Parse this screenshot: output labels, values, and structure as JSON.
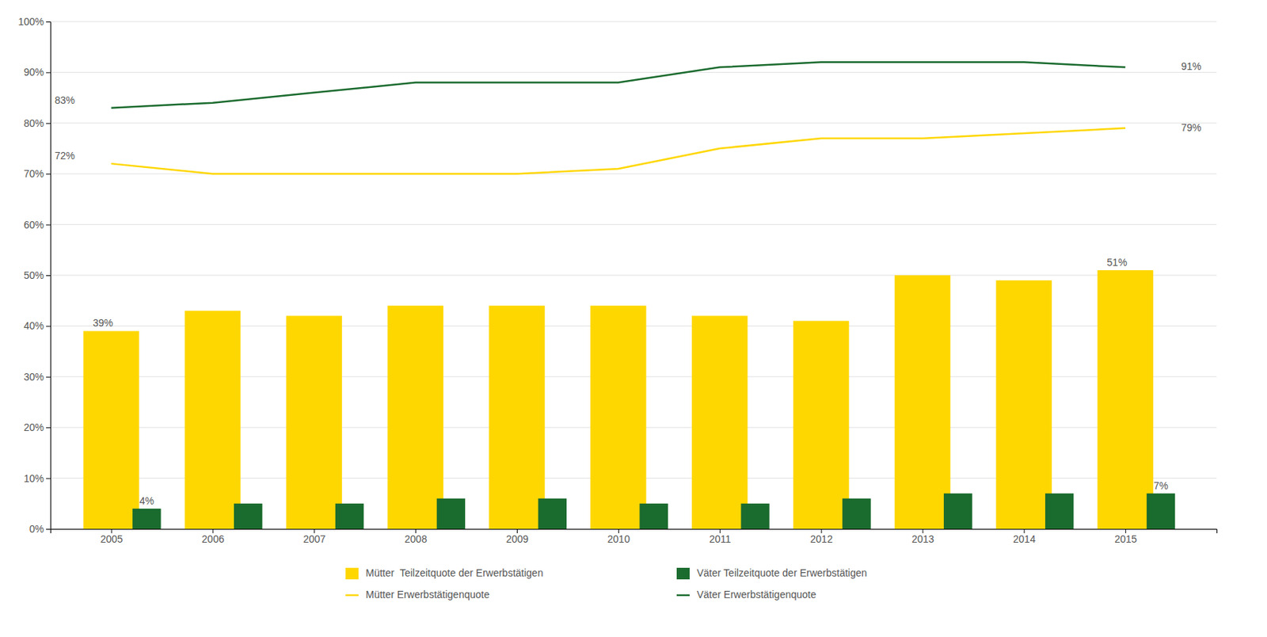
{
  "chart_data": {
    "type": "bar",
    "x": [
      2005,
      2006,
      2007,
      2008,
      2009,
      2010,
      2011,
      2012,
      2013,
      2014,
      2015
    ],
    "xlim": [
      2004.4,
      2015.9
    ],
    "xticks": [
      2005,
      2006,
      2007,
      2008,
      2009,
      2010,
      2011,
      2012,
      2013,
      2014,
      2015
    ],
    "ylim": [
      0,
      100
    ],
    "yticks": [
      {
        "value": 0,
        "label": "0%"
      },
      {
        "value": 10,
        "label": "10%"
      },
      {
        "value": 20,
        "label": "20%"
      },
      {
        "value": 30,
        "label": "30%"
      },
      {
        "value": 40,
        "label": "40%"
      },
      {
        "value": 50,
        "label": "50%"
      },
      {
        "value": 60,
        "label": "60%"
      },
      {
        "value": 70,
        "label": "70%"
      },
      {
        "value": 80,
        "label": "80%"
      },
      {
        "value": 90,
        "label": "90%"
      },
      {
        "value": 100,
        "label": "100%"
      }
    ],
    "grid": true,
    "legend": "bottom",
    "series": [
      {
        "name": "Mütter  Teilzeitquote der Erwerbstätigen",
        "type": "bar",
        "color": "#FFD700",
        "values": [
          39,
          43,
          42,
          44,
          44,
          44,
          42,
          41,
          50,
          49,
          51
        ],
        "value_labels": [
          "39%",
          null,
          null,
          null,
          null,
          null,
          null,
          null,
          null,
          null,
          "51%"
        ]
      },
      {
        "name": "Väter Teilzeitquote der Erwerbstätigen",
        "type": "bar",
        "color": "#1a6b2e",
        "values": [
          4,
          5,
          5,
          6,
          6,
          5,
          5,
          6,
          7,
          7,
          7
        ],
        "value_labels": [
          "4%",
          null,
          null,
          null,
          null,
          null,
          null,
          null,
          null,
          null,
          "7%"
        ]
      },
      {
        "name": "Mütter Erwerbstätigenquote",
        "type": "line",
        "color": "#FFD700",
        "values": [
          72,
          70,
          70,
          70,
          70,
          71,
          75,
          77,
          77,
          78,
          79
        ],
        "value_labels": [
          "72%",
          null,
          null,
          null,
          null,
          null,
          null,
          null,
          null,
          null,
          "79%"
        ]
      },
      {
        "name": "Väter Erwerbstätigenquote",
        "type": "line",
        "color": "#1a6b2e",
        "values": [
          83,
          84,
          86,
          88,
          88,
          88,
          91,
          92,
          92,
          92,
          91
        ],
        "value_labels": [
          "83%",
          null,
          null,
          null,
          null,
          null,
          null,
          null,
          null,
          null,
          "91%"
        ]
      }
    ]
  }
}
